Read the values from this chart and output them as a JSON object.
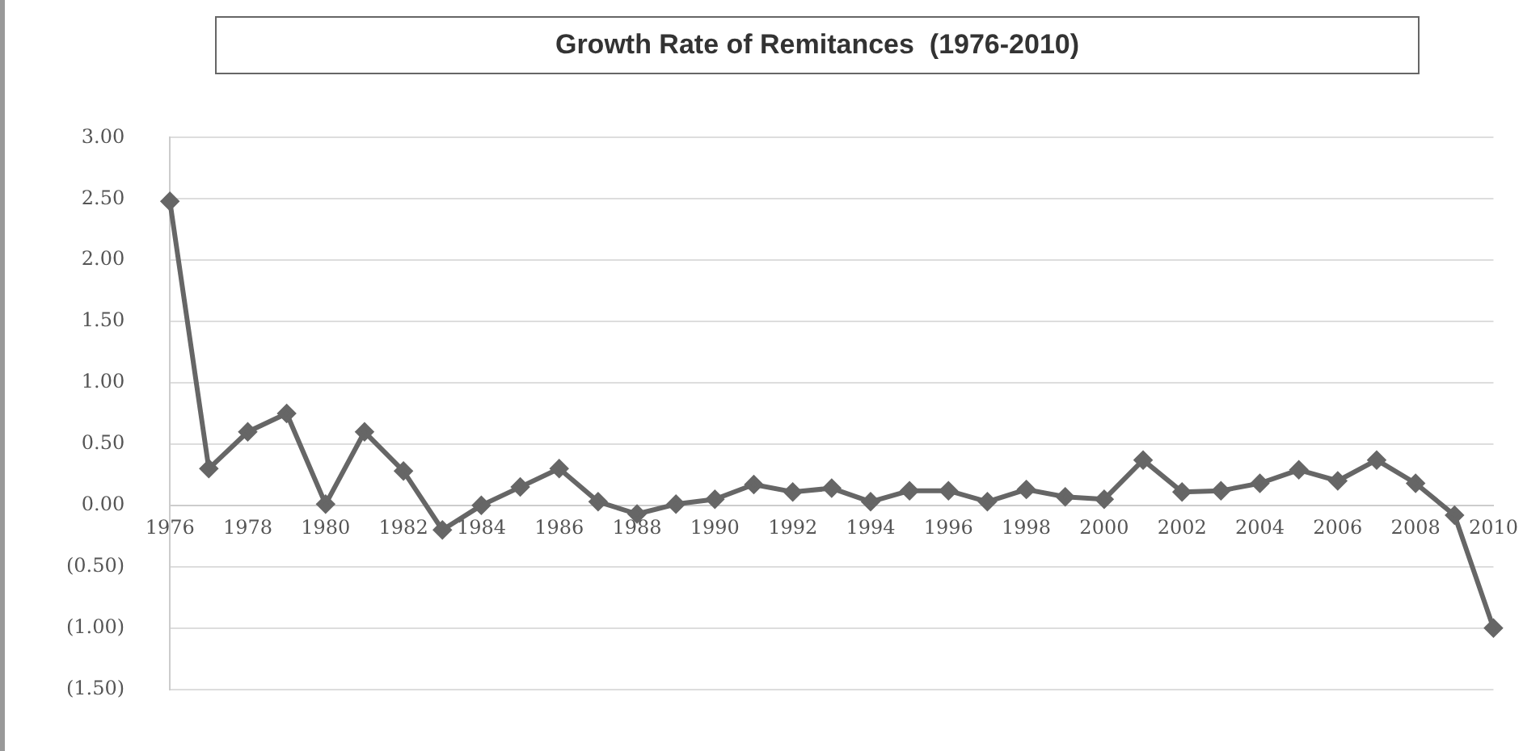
{
  "chart_data": {
    "type": "line",
    "title": "Growth Rate of Remitances  (1976-2010)",
    "categories": [
      "1976",
      null,
      "1978",
      null,
      "1980",
      null,
      "1982",
      null,
      "1984",
      null,
      "1986",
      null,
      "1988",
      null,
      "1990",
      null,
      "1992",
      null,
      "1994",
      null,
      "1996",
      null,
      "1998",
      null,
      "2000",
      null,
      "2002",
      null,
      "2004",
      null,
      "2006",
      null,
      "2008",
      null,
      "2010"
    ],
    "series": [
      {
        "color": "#666666",
        "values": [
          2.48,
          0.3,
          0.6,
          0.75,
          0.01,
          0.6,
          0.28,
          -0.2,
          0.0,
          0.15,
          0.3,
          0.03,
          -0.07,
          0.01,
          0.05,
          0.17,
          0.11,
          0.14,
          0.03,
          0.12,
          0.12,
          0.03,
          0.13,
          0.07,
          0.05,
          0.37,
          0.11,
          0.12,
          0.18,
          0.29,
          0.2,
          0.37,
          0.18,
          -0.08,
          -1.0
        ]
      }
    ],
    "ylim": [
      -1.5,
      3.0
    ],
    "yticks": [
      {
        "value": -1.5,
        "label": "(1.50)"
      },
      {
        "value": -1.0,
        "label": "(1.00)"
      },
      {
        "value": -0.5,
        "label": "(0.50)"
      },
      {
        "value": 0,
        "label": "0.00"
      },
      {
        "value": 0.5,
        "label": "0.50"
      },
      {
        "value": 1.0,
        "label": "1.00"
      },
      {
        "value": 1.5,
        "label": "1.50"
      },
      {
        "value": 2.0,
        "label": "2.00"
      },
      {
        "value": 2.5,
        "label": "2.50"
      },
      {
        "value": 3.0,
        "label": "3.00"
      }
    ],
    "grid": "y",
    "marker": "diamond",
    "line_style": "solid"
  }
}
